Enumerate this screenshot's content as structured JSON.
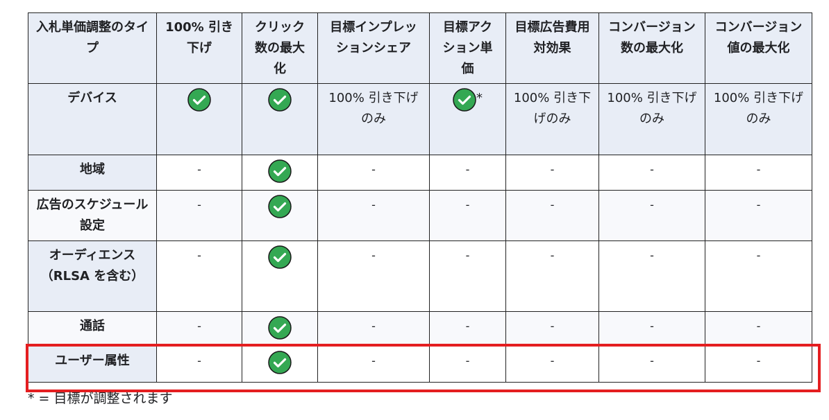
{
  "headers": [
    "入札単価調整のタイプ",
    "100% 引き下げ",
    "クリック数の最大化",
    "目標インプレッションシェア",
    "目標アクション単価",
    "目標広告費用対効果",
    "コンバージョン数の最大化",
    "コンバージョン値の最大化"
  ],
  "rows": [
    {
      "label": "デバイス",
      "cells": [
        "check",
        "check",
        "100% 引き下げのみ",
        "check*",
        "100% 引き下げのみ",
        "100% 引き下げのみ",
        "100% 引き下げのみ"
      ]
    },
    {
      "label": "地域",
      "cells": [
        "-",
        "check",
        "-",
        "-",
        "-",
        "-",
        "-"
      ]
    },
    {
      "label": "広告のスケジュール設定",
      "cells": [
        "-",
        "check",
        "-",
        "-",
        "-",
        "-",
        "-"
      ]
    },
    {
      "label": "オーディエンス（RLSA を含む）",
      "cells": [
        "-",
        "check",
        "-",
        "-",
        "-",
        "-",
        "-"
      ]
    },
    {
      "label": "通話",
      "cells": [
        "-",
        "check",
        "-",
        "-",
        "-",
        "-",
        "-"
      ]
    },
    {
      "label": "ユーザー属性",
      "cells": [
        "-",
        "check",
        "-",
        "-",
        "-",
        "-",
        "-"
      ]
    }
  ],
  "footnote": "* = 目標が調整されます",
  "colors": {
    "check": "#34a853",
    "highlight": "#e41e20",
    "header_bg": "#e8edf6"
  },
  "icons": {
    "check": "check-circle-icon"
  },
  "highlighted_row": "ユーザー属性"
}
